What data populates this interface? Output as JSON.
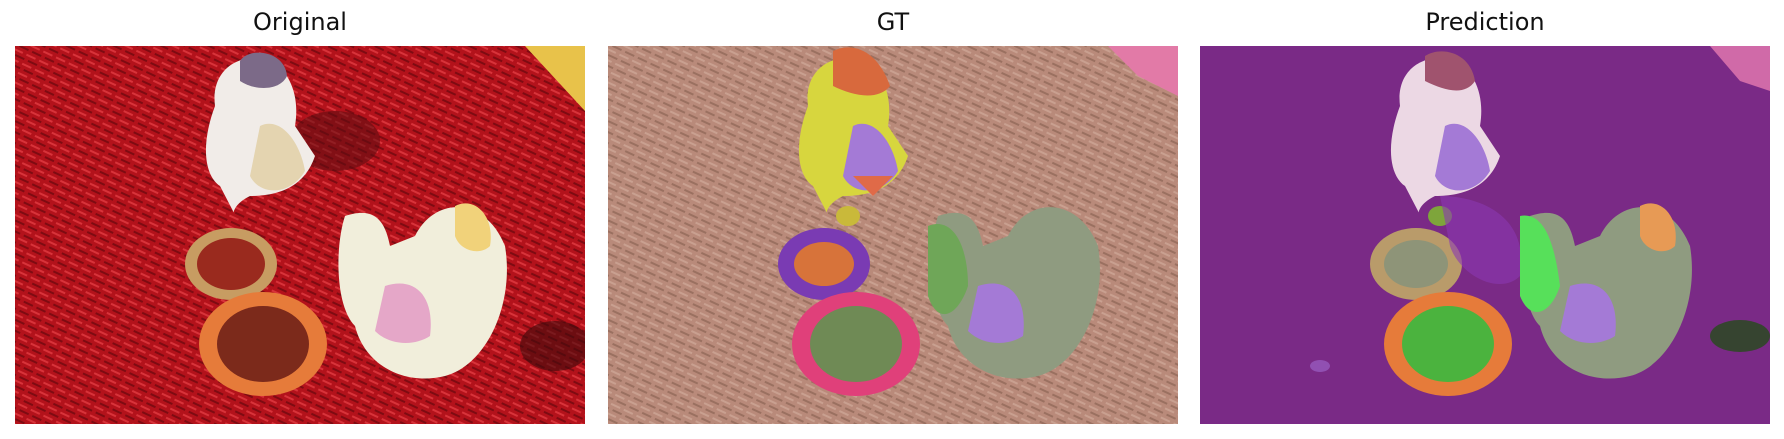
{
  "panels": [
    {
      "title": "Original"
    },
    {
      "title": "GT"
    },
    {
      "title": "Prediction"
    }
  ],
  "colors": {
    "chili_red": "#b3121b",
    "gt_background": "#b98a7a",
    "pred_background": "#7a2a86",
    "basket_green": "#4bb33e",
    "person_sage": "#8f9b80",
    "lavender": "#a47ad6",
    "bowl_pink": "#e0407a",
    "basket_purple": "#7a3bb3",
    "yellow_mask": "#d7d63e"
  }
}
